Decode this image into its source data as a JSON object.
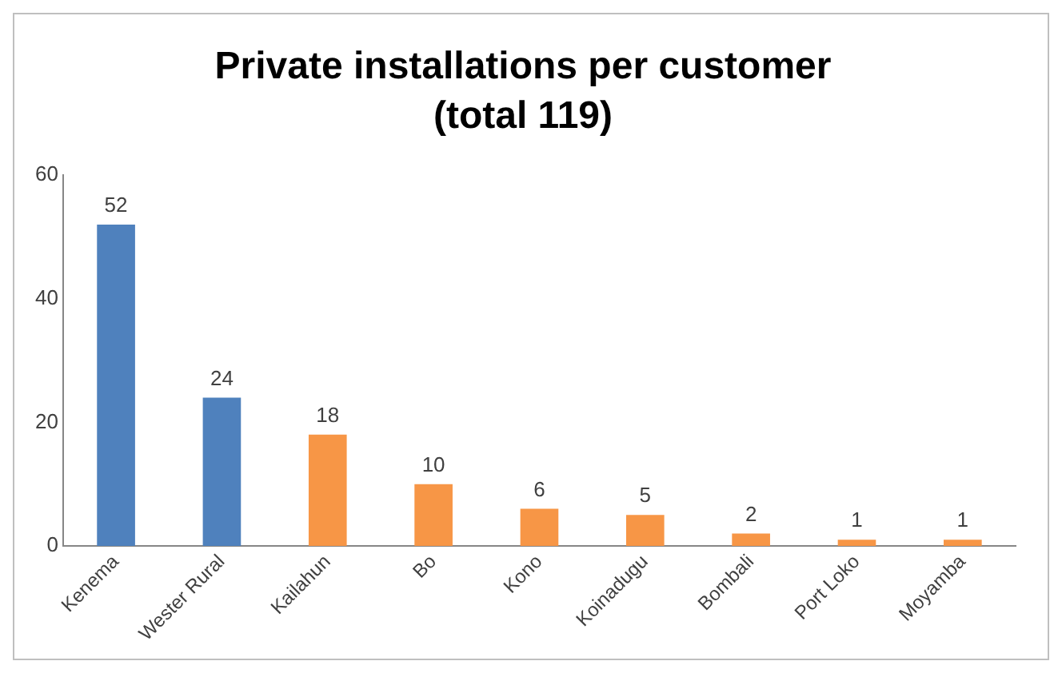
{
  "chart_data": {
    "type": "bar",
    "title": "Private installations per customer",
    "subtitle": "(total 119)",
    "categories": [
      "Kenema",
      "Wester Rural",
      "Kailahun",
      "Bo",
      "Kono",
      "Koinadugu",
      "Bombali",
      "Port Loko",
      "Moyamba"
    ],
    "values": [
      52,
      24,
      18,
      10,
      6,
      5,
      2,
      1,
      1
    ],
    "colors": [
      "#4f81bd",
      "#4f81bd",
      "#f79646",
      "#f79646",
      "#f79646",
      "#f79646",
      "#f79646",
      "#f79646",
      "#f79646"
    ],
    "ylim": [
      0,
      60
    ],
    "yticks": [
      0,
      20,
      40,
      60
    ],
    "grid": false,
    "legend": false,
    "data_labels": true
  }
}
